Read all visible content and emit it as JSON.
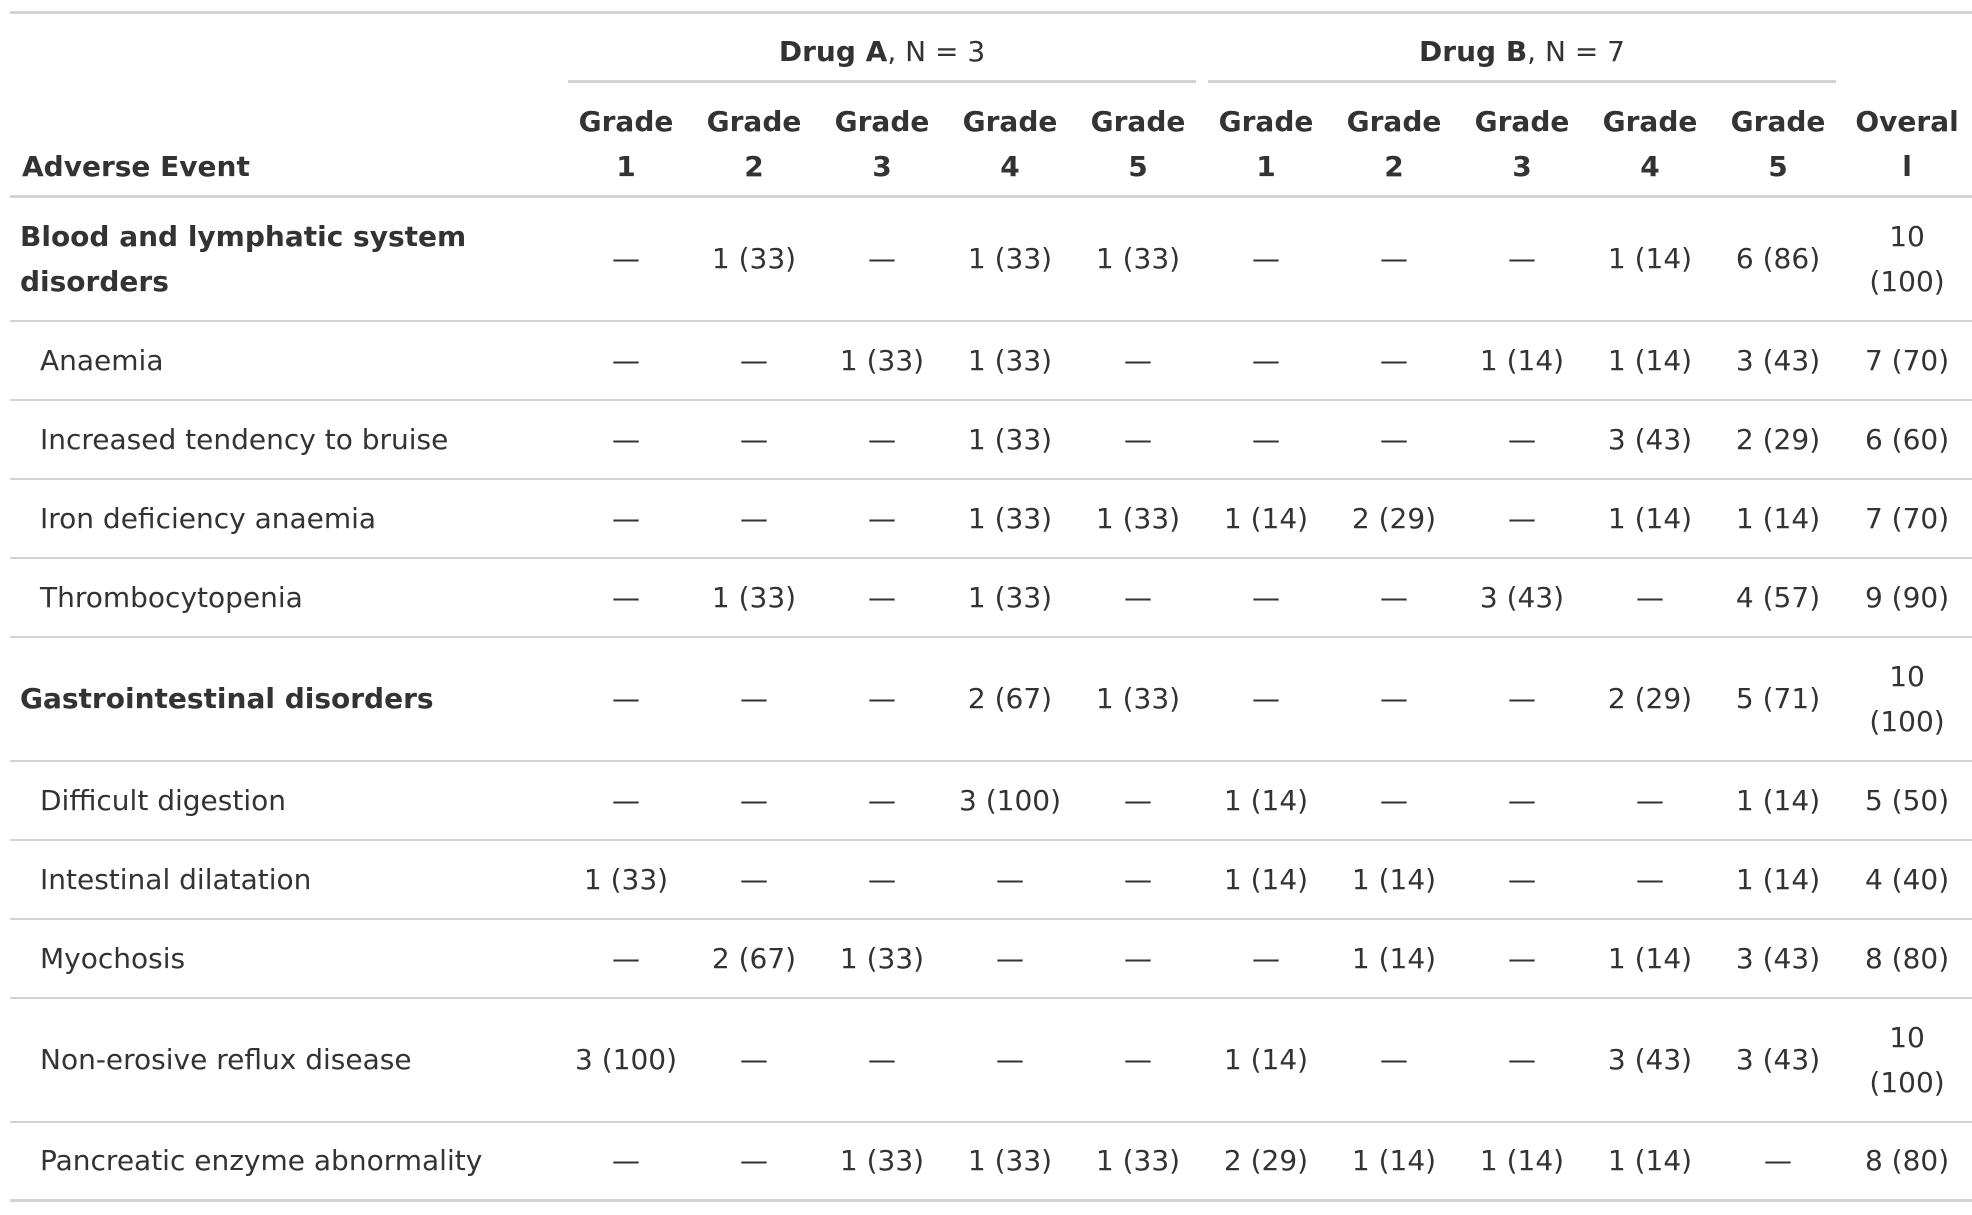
{
  "header": {
    "spanners": [
      {
        "bold": "Drug A",
        "rest": ", N = 3"
      },
      {
        "bold": "Drug B",
        "rest": ", N = 7"
      }
    ],
    "stub": "Adverse Event",
    "columns": [
      "Grade 1",
      "Grade 2",
      "Grade 3",
      "Grade 4",
      "Grade 5",
      "Grade 1",
      "Grade 2",
      "Grade 3",
      "Grade 4",
      "Grade 5",
      "Overall"
    ]
  },
  "groups": [
    {
      "label": "Blood and lymphatic system disorders",
      "cells": [
        "—",
        "1 (33)",
        "—",
        "1 (33)",
        "1 (33)",
        "—",
        "—",
        "—",
        "1 (14)",
        "6 (86)",
        "10 (100)"
      ],
      "events": [
        {
          "label": "Anaemia",
          "cells": [
            "—",
            "—",
            "1 (33)",
            "1 (33)",
            "—",
            "—",
            "—",
            "1 (14)",
            "1 (14)",
            "3 (43)",
            "7 (70)"
          ]
        },
        {
          "label": "Increased tendency to bruise",
          "cells": [
            "—",
            "—",
            "—",
            "1 (33)",
            "—",
            "—",
            "—",
            "—",
            "3 (43)",
            "2 (29)",
            "6 (60)"
          ]
        },
        {
          "label": "Iron deficiency anaemia",
          "cells": [
            "—",
            "—",
            "—",
            "1 (33)",
            "1 (33)",
            "1 (14)",
            "2 (29)",
            "—",
            "1 (14)",
            "1 (14)",
            "7 (70)"
          ]
        },
        {
          "label": "Thrombocytopenia",
          "cells": [
            "—",
            "1 (33)",
            "—",
            "1 (33)",
            "—",
            "—",
            "—",
            "3 (43)",
            "—",
            "4 (57)",
            "9 (90)"
          ]
        }
      ]
    },
    {
      "label": "Gastrointestinal disorders",
      "cells": [
        "—",
        "—",
        "—",
        "2 (67)",
        "1 (33)",
        "—",
        "—",
        "—",
        "2 (29)",
        "5 (71)",
        "10 (100)"
      ],
      "events": [
        {
          "label": "Difficult digestion",
          "cells": [
            "—",
            "—",
            "—",
            "3 (100)",
            "—",
            "1 (14)",
            "—",
            "—",
            "—",
            "1 (14)",
            "5 (50)"
          ]
        },
        {
          "label": "Intestinal dilatation",
          "cells": [
            "1 (33)",
            "—",
            "—",
            "—",
            "—",
            "1 (14)",
            "1 (14)",
            "—",
            "—",
            "1 (14)",
            "4 (40)"
          ]
        },
        {
          "label": "Myochosis",
          "cells": [
            "—",
            "2 (67)",
            "1 (33)",
            "—",
            "—",
            "—",
            "1 (14)",
            "—",
            "1 (14)",
            "3 (43)",
            "8 (80)"
          ]
        },
        {
          "label": "Non-erosive reflux disease",
          "cells": [
            "3 (100)",
            "—",
            "—",
            "—",
            "—",
            "1 (14)",
            "—",
            "—",
            "3 (43)",
            "3 (43)",
            "10 (100)"
          ]
        },
        {
          "label": "Pancreatic enzyme abnormality",
          "cells": [
            "—",
            "—",
            "1 (33)",
            "1 (33)",
            "1 (33)",
            "2 (29)",
            "1 (14)",
            "1 (14)",
            "1 (14)",
            "—",
            "8 (80)"
          ]
        }
      ]
    }
  ]
}
